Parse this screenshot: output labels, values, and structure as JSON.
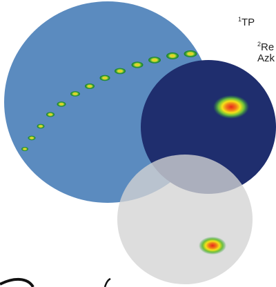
{
  "affiliations": [
    {
      "marker": "1",
      "text": "TP"
    },
    {
      "marker": "2",
      "text": "Re",
      "continuation": "Azk"
    }
  ],
  "colors": {
    "large_circle": "#5b8bbf",
    "dark_circle": "#1f2e6e",
    "grey_circle": "#c9c9c9",
    "spot_core": "#e8261b",
    "spot_mid": "#f5e21a",
    "spot_outer": "#2e9b3a"
  }
}
